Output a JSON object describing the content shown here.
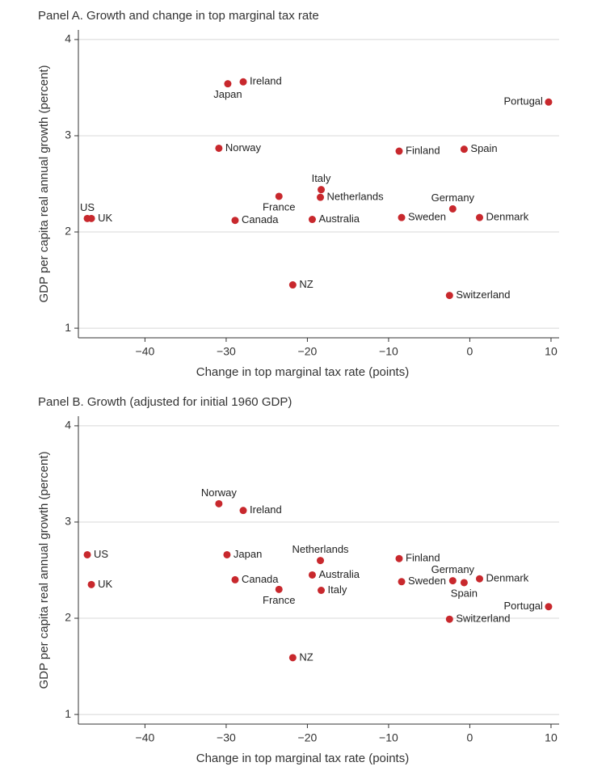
{
  "chart_data": [
    {
      "type": "scatter",
      "title": "Panel A. Growth and change in top marginal tax rate",
      "xlabel": "Change in top marginal tax rate (points)",
      "ylabel": "GDP per capita real annual growth (percent)",
      "color": "#c8282d",
      "grid": true,
      "labels": [
        "US",
        "UK",
        "Japan",
        "Ireland",
        "Portugal",
        "Norway",
        "Finland",
        "Spain",
        "Italy",
        "France",
        "Netherlands",
        "Germany",
        "Canada",
        "Australia",
        "Sweden",
        "Denmark",
        "NZ",
        "Switzerland"
      ],
      "x": [
        -47.1,
        -46.6,
        -29.8,
        -27.9,
        9.7,
        -30.9,
        -8.7,
        -0.7,
        -18.3,
        -23.5,
        -18.4,
        -2.1,
        -28.9,
        -19.4,
        -8.4,
        1.2,
        -21.8,
        -2.5
      ],
      "values": [
        2.14,
        2.14,
        3.54,
        3.56,
        3.35,
        2.87,
        2.84,
        2.86,
        2.44,
        2.37,
        2.36,
        2.24,
        2.12,
        2.13,
        2.15,
        2.15,
        1.45,
        1.34
      ],
      "xlim": [
        -48.2,
        11
      ],
      "ylim": [
        0.9,
        4.1
      ],
      "xticks": [
        {
          "value": -40,
          "label": "−40"
        },
        {
          "value": -30,
          "label": "−30"
        },
        {
          "value": -20,
          "label": "−20"
        },
        {
          "value": -10,
          "label": "−10"
        },
        0,
        10
      ],
      "yticks": [
        1,
        2,
        3,
        4
      ]
    },
    {
      "type": "scatter",
      "title": "Panel B. Growth (adjusted for initial 1960 GDP)",
      "xlabel": "Change in top marginal tax rate (points)",
      "ylabel": "GDP per capita real annual growth (percent)",
      "color": "#c8282d",
      "grid": true,
      "labels": [
        "US",
        "UK",
        "Norway",
        "Ireland",
        "Japan",
        "Canada",
        "France",
        "Netherlands",
        "Australia",
        "Italy",
        "NZ",
        "Finland",
        "Sweden",
        "Germany",
        "Spain",
        "Denmark",
        "Portugal",
        "Switzerland"
      ],
      "x": [
        -47.1,
        -46.6,
        -30.9,
        -27.9,
        -29.9,
        -28.9,
        -23.5,
        -18.4,
        -19.4,
        -18.3,
        -21.8,
        -8.7,
        -8.4,
        -2.1,
        -0.7,
        1.2,
        9.7,
        -2.5
      ],
      "values": [
        2.66,
        2.35,
        3.19,
        3.12,
        2.66,
        2.4,
        2.3,
        2.6,
        2.45,
        2.29,
        1.59,
        2.62,
        2.38,
        2.39,
        2.37,
        2.41,
        2.12,
        1.99
      ],
      "xlim": [
        -48.2,
        11
      ],
      "ylim": [
        0.9,
        4.1
      ],
      "xticks": [
        {
          "value": -40,
          "label": "−40"
        },
        {
          "value": -30,
          "label": "−30"
        },
        {
          "value": -20,
          "label": "−20"
        },
        {
          "value": -10,
          "label": "−10"
        },
        0,
        10
      ],
      "yticks": [
        1,
        2,
        3,
        4
      ]
    }
  ]
}
